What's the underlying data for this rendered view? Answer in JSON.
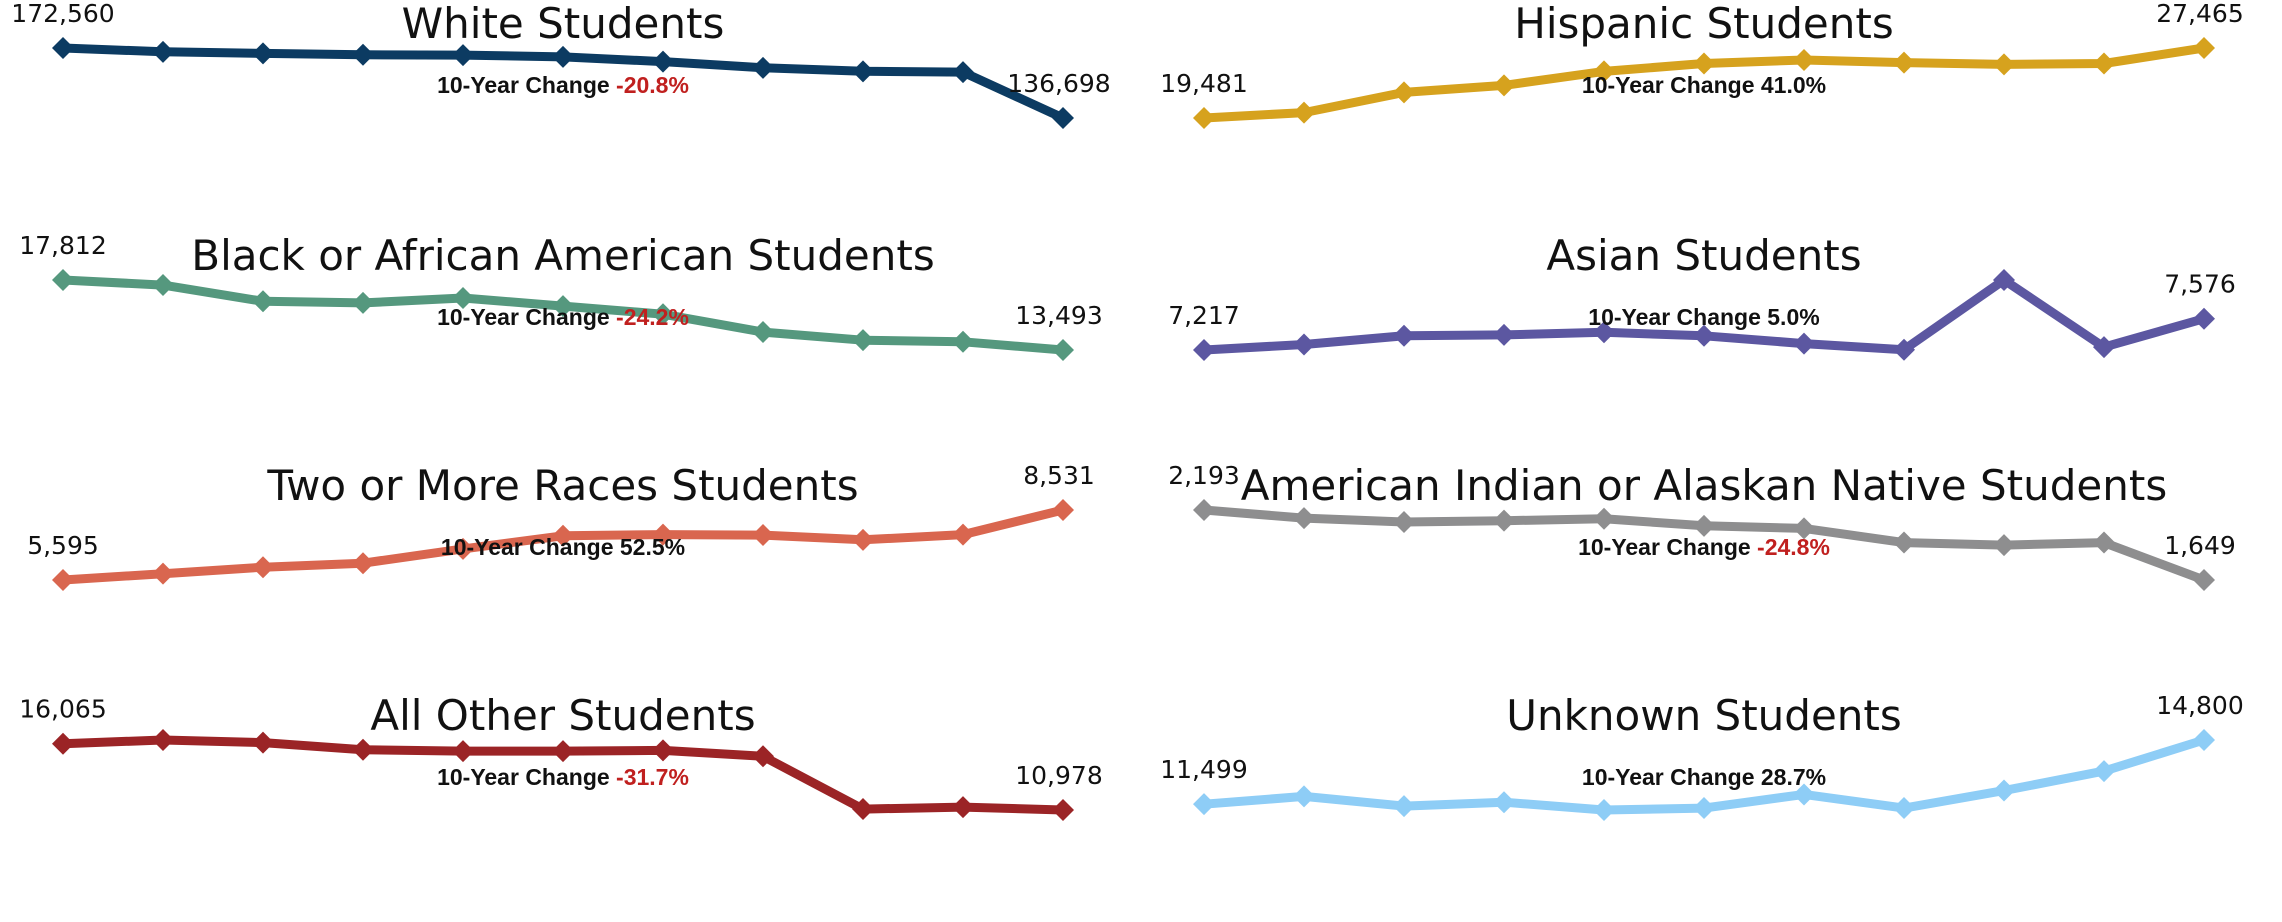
{
  "chart_data": [
    {
      "type": "line",
      "title": "White Students",
      "change_label": "10-Year Change",
      "change_value": "-20.8%",
      "change_negative": true,
      "color": "#0c3b62",
      "values": [
        172560,
        170600,
        169800,
        169100,
        168900,
        168000,
        165600,
        162400,
        160600,
        160200,
        136698
      ],
      "start_label": "172,560",
      "end_label": "136,698"
    },
    {
      "type": "line",
      "title": "Hispanic Students",
      "change_label": "10-Year Change",
      "change_value": "41.0%",
      "change_negative": false,
      "color": "#d6a21e",
      "values": [
        19481,
        20100,
        22400,
        23200,
        24800,
        25700,
        26100,
        25800,
        25600,
        25700,
        27465
      ],
      "start_label": "19,481",
      "end_label": "27,465"
    },
    {
      "type": "line",
      "title": "Black or African American Students",
      "change_label": "10-Year Change",
      "change_value": "-24.2%",
      "change_negative": true,
      "color": "#55987e",
      "values": [
        17812,
        17500,
        16500,
        16400,
        16700,
        16200,
        15700,
        14600,
        14100,
        14000,
        13493
      ],
      "start_label": "17,812",
      "end_label": "13,493"
    },
    {
      "type": "line",
      "title": "Asian Students",
      "change_label": "10-Year Change",
      "change_value": "5.0%",
      "change_negative": false,
      "color": "#5c57a1",
      "values": [
        7217,
        7280,
        7380,
        7390,
        7420,
        7380,
        7290,
        7220,
        8020,
        7250,
        7576
      ],
      "start_label": "7,217",
      "end_label": "7,576"
    },
    {
      "type": "line",
      "title": "Two or More Races Students",
      "change_label": "10-Year Change",
      "change_value": "52.5%",
      "change_negative": false,
      "color": "#d9664f",
      "values": [
        5595,
        5860,
        6130,
        6300,
        6900,
        7450,
        7500,
        7480,
        7280,
        7500,
        8531
      ],
      "start_label": "5,595",
      "end_label": "8,531"
    },
    {
      "type": "line",
      "title": "American Indian or Alaskan Native Students",
      "change_label": "10-Year Change",
      "change_value": "-24.8%",
      "change_negative": true,
      "color": "#8e8e8f",
      "values": [
        2193,
        2130,
        2100,
        2110,
        2125,
        2070,
        2050,
        1940,
        1920,
        1940,
        1649
      ],
      "start_label": "2,193",
      "end_label": "1,649"
    },
    {
      "type": "line",
      "title": "All Other Students",
      "change_label": "10-Year Change",
      "change_value": "-31.7%",
      "change_negative": true,
      "color": "#9b2426",
      "values": [
        16065,
        16350,
        16150,
        15600,
        15500,
        15500,
        15550,
        15100,
        11050,
        11200,
        10978
      ],
      "start_label": "16,065",
      "end_label": "10,978"
    },
    {
      "type": "line",
      "title": "Unknown Students",
      "change_label": "10-Year Change",
      "change_value": "28.7%",
      "change_negative": false,
      "color": "#8ecdf6",
      "values": [
        11499,
        11900,
        11400,
        11600,
        11200,
        11300,
        12000,
        11300,
        12200,
        13200,
        14800
      ],
      "start_label": "11,499",
      "end_label": "14,800"
    }
  ]
}
